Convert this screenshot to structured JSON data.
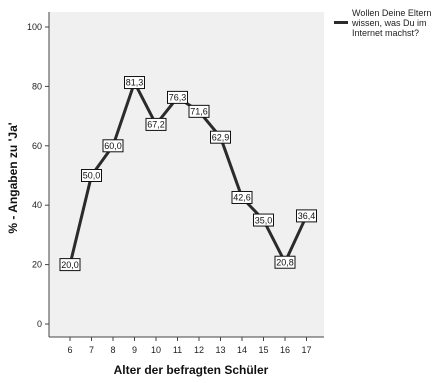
{
  "chart_data": {
    "type": "line",
    "xlabel": "Alter der befragten Schüler",
    "ylabel": "% - Angaben zu 'Ja'",
    "ylim": [
      0,
      100
    ],
    "yticks": [
      0,
      20,
      40,
      60,
      80,
      100
    ],
    "categories": [
      "6",
      "7",
      "8",
      "9",
      "10",
      "11",
      "12",
      "13",
      "14",
      "15",
      "16",
      "17"
    ],
    "series": [
      {
        "name": "Wollen Deine Eltern wissen, was Du im Internet machst?",
        "values": [
          20.0,
          50.0,
          60.0,
          81.3,
          67.2,
          76.3,
          71.6,
          62.9,
          42.6,
          35.0,
          20.8,
          36.4
        ],
        "labels": [
          "20,0",
          "50,0",
          "60,0",
          "81,3",
          "67,2",
          "76,3",
          "71,6",
          "62,9",
          "42,6",
          "35,0",
          "20,8",
          "36,4"
        ]
      }
    ],
    "legend_lines": [
      "Wollen Deine Eltern",
      "wissen, was Du im",
      "Internet machst?"
    ],
    "legend_position": "top-right",
    "colors": {
      "plot_bg": "#f0f0f0",
      "line": "#2b2b2b",
      "axis": "#444444"
    }
  }
}
